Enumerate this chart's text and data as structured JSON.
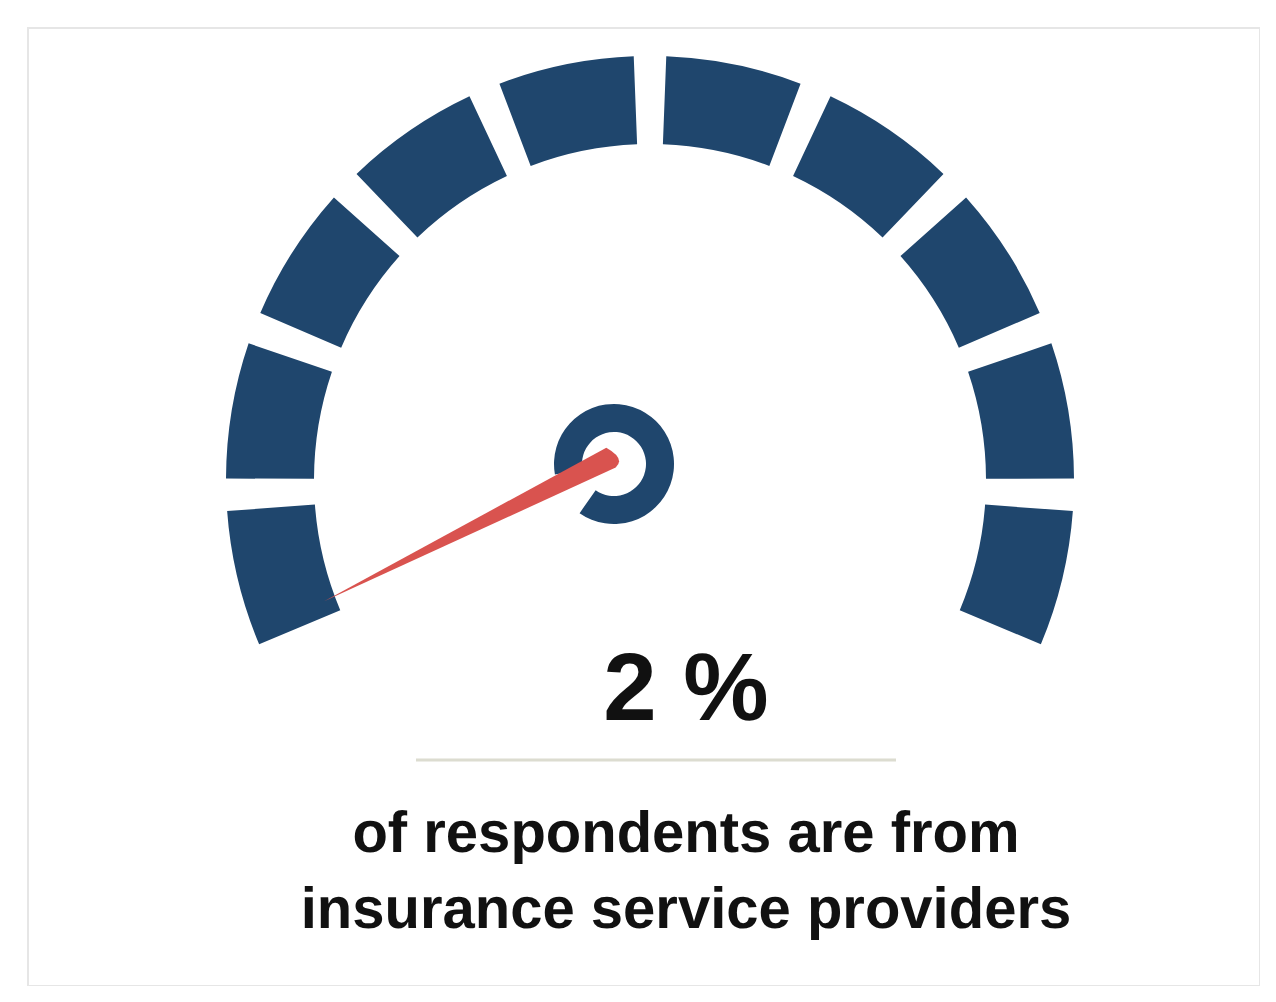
{
  "chart_data": {
    "type": "other",
    "categories": [
      null
    ],
    "values": [
      2
    ],
    "value_labels": [
      "2 %"
    ],
    "colors": [
      "#d9534f"
    ],
    "annotations": [
      "of respondents are from insurance service providers"
    ]
  }
}
